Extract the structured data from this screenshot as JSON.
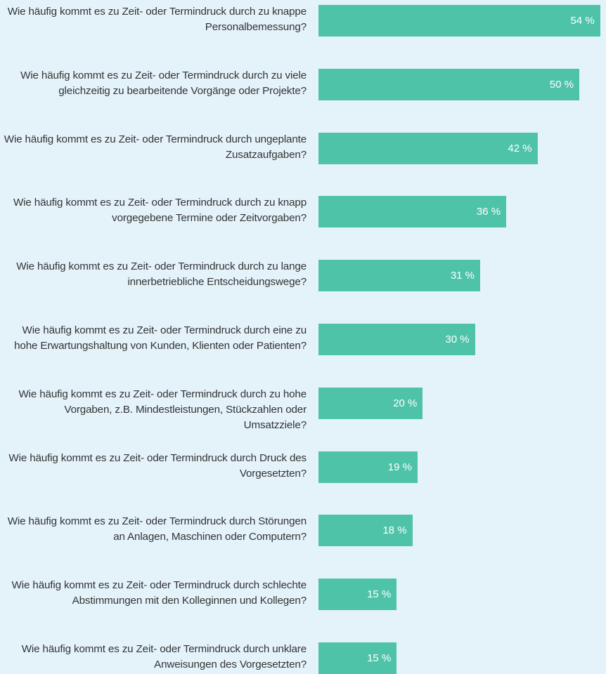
{
  "chart_data": {
    "type": "bar",
    "orientation": "horizontal",
    "color": "#4fc3a8",
    "categories": [
      "Wie häufig kommt es zu Zeit- oder Termindruck durch zu knappe Personalbemessung?",
      "Wie häufig kommt es zu Zeit- oder Termindruck durch zu viele gleichzeitig zu bearbeitende Vorgänge oder Projekte?",
      "Wie häufig kommt es zu Zeit- oder Termindruck durch ungeplante Zusatzaufgaben?",
      "Wie häufig kommt es zu Zeit- oder Termindruck durch zu knapp vorgegebene Termine oder Zeitvorgaben?",
      "Wie häufig kommt es zu Zeit- oder Termindruck durch zu lange innerbetriebliche Entscheidungswege?",
      "Wie häufig kommt es zu Zeit- oder Termindruck durch eine zu hohe Erwartungshaltung von Kunden, Klienten oder Patienten?",
      "Wie häufig kommt es zu Zeit- oder Termindruck durch zu hohe Vorgaben, z.B. Mindestleistungen, Stückzahlen oder Umsatzziele?",
      "Wie häufig kommt es zu Zeit- oder Termindruck durch Druck des Vorgesetzten?",
      "Wie häufig kommt es zu Zeit- oder Termindruck durch Störungen an Anlagen, Maschinen oder Computern?",
      "Wie häufig kommt es zu Zeit- oder Termindruck durch schlechte Abstimmungen mit den Kolleginnen und Kollegen?",
      "Wie häufig kommt es zu Zeit- oder Termindruck durch unklare Anweisungen des Vorgesetzten?"
    ],
    "values": [
      54,
      50,
      42,
      36,
      31,
      30,
      20,
      19,
      18,
      15,
      15
    ],
    "value_labels": [
      "54 %",
      "50 %",
      "42 %",
      "36 %",
      "31 %",
      "30 %",
      "20 %",
      "19 %",
      "18 %",
      "15 %",
      "15 %"
    ]
  }
}
